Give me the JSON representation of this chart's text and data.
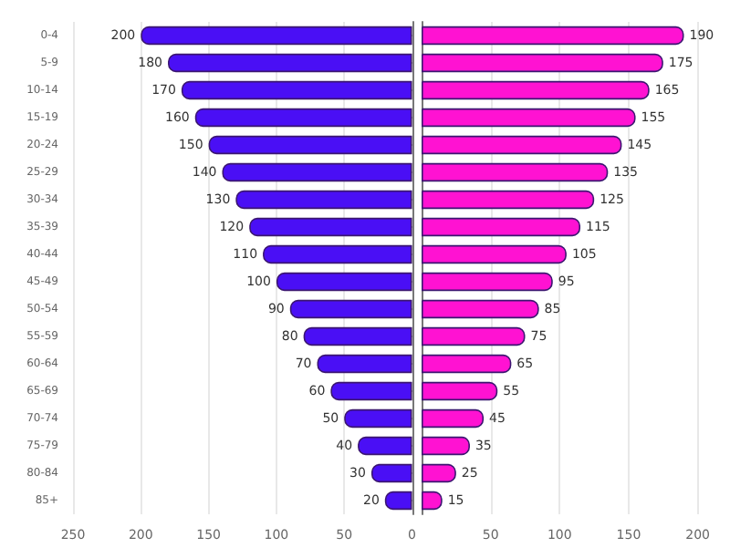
{
  "chart_data": [
    {
      "type": "bar",
      "orientation": "horizontal",
      "categories": [
        "0-4",
        "5-9",
        "10-14",
        "15-19",
        "20-24",
        "25-29",
        "30-34",
        "35-39",
        "40-44",
        "45-49",
        "50-54",
        "55-59",
        "60-64",
        "65-69",
        "70-74",
        "75-79",
        "80-84",
        "85+"
      ],
      "series": [
        {
          "color": "#4a0ff5",
          "values": [
            200,
            180,
            170,
            160,
            150,
            140,
            130,
            120,
            110,
            100,
            90,
            80,
            70,
            60,
            50,
            40,
            30,
            20
          ]
        }
      ],
      "xlim": [
        250,
        0
      ],
      "xticks": [
        250,
        200,
        150,
        100,
        50,
        0
      ],
      "data_labels": true,
      "grid": "x"
    },
    {
      "type": "bar",
      "orientation": "horizontal",
      "categories": [
        null,
        null,
        null,
        null,
        null,
        null,
        null,
        null,
        null,
        null,
        null,
        null,
        null,
        null,
        null,
        null,
        null,
        null
      ],
      "series": [
        {
          "color": "#ff12d2",
          "values": [
            190,
            175,
            165,
            155,
            145,
            135,
            125,
            115,
            105,
            95,
            85,
            75,
            65,
            55,
            45,
            35,
            25,
            15
          ]
        }
      ],
      "xlim": [
        0,
        200
      ],
      "xticks": [
        50,
        100,
        150,
        200
      ],
      "data_labels": true,
      "grid": "x",
      "tick_labels": "x"
    }
  ]
}
